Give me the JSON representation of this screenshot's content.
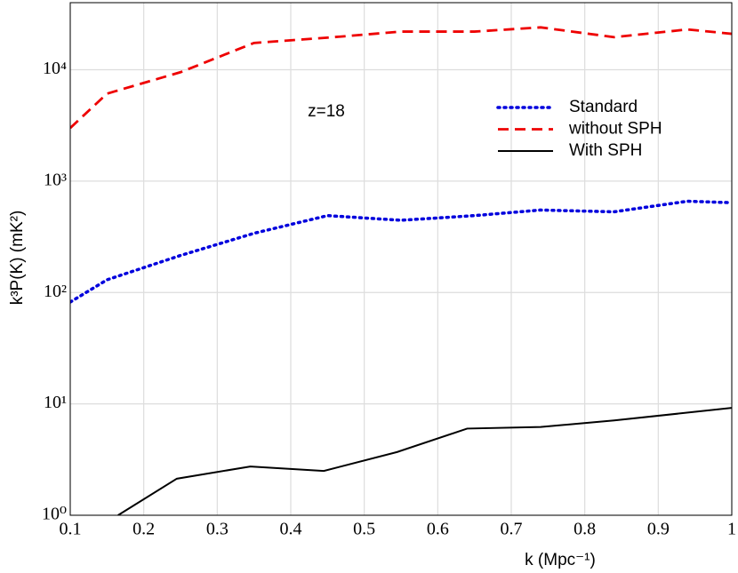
{
  "chart_data": {
    "type": "line",
    "xlabel": "k (Mpc⁻¹)",
    "ylabel": "k³P(K) (mK²)",
    "annotation": "z=18",
    "annotation_color": "#0000dd",
    "yscale": "log",
    "grid": true,
    "legend": "upper right",
    "xlim": [
      0.1,
      1
    ],
    "xticks": [
      0.1,
      0.2,
      0.3,
      0.4,
      0.5,
      0.6,
      0.7,
      0.8,
      0.9,
      1
    ],
    "ylim": [
      1,
      40000
    ],
    "yticks": [
      {
        "value": 1,
        "label": "10⁰"
      },
      {
        "value": 10,
        "label": "10¹"
      },
      {
        "value": 100,
        "label": "10²"
      },
      {
        "value": 1000,
        "label": "10³"
      },
      {
        "value": 10000,
        "label": "10⁴"
      }
    ],
    "series": [
      {
        "name": "Standard",
        "color": "#0000dd",
        "dash": "dotted",
        "x": [
          0.1,
          0.15,
          0.25,
          0.35,
          0.45,
          0.55,
          0.65,
          0.74,
          0.84,
          0.94,
          1
        ],
        "values": [
          82,
          130,
          215,
          340,
          490,
          445,
          490,
          550,
          530,
          660,
          640
        ]
      },
      {
        "name": "without SPH",
        "color": "#ee0000",
        "dash": "dashed",
        "x": [
          0.1,
          0.15,
          0.25,
          0.35,
          0.45,
          0.55,
          0.65,
          0.74,
          0.84,
          0.94,
          1
        ],
        "values": [
          3000,
          6100,
          9500,
          17400,
          19400,
          22000,
          22000,
          24000,
          19600,
          23000,
          21000
        ]
      },
      {
        "name": "With SPH",
        "color": "#000000",
        "dash": "solid",
        "x": [
          0.165,
          0.245,
          0.345,
          0.445,
          0.545,
          0.64,
          0.74,
          0.84,
          1
        ],
        "values": [
          1.0,
          2.13,
          2.74,
          2.5,
          3.7,
          6.0,
          6.2,
          7.1,
          9.2
        ]
      }
    ]
  }
}
